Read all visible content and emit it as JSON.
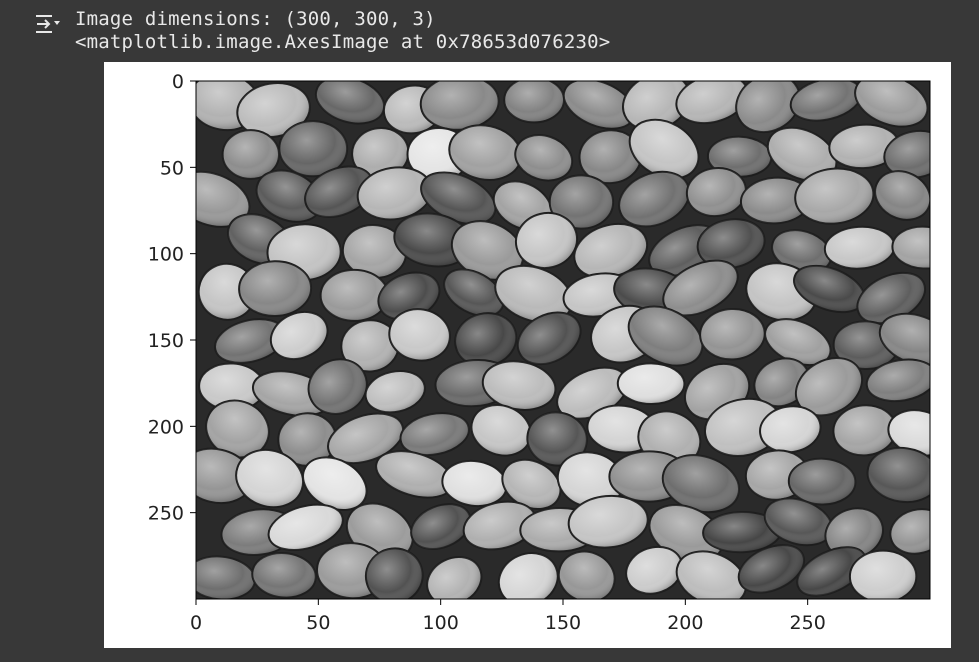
{
  "output": {
    "line1": "Image dimensions: (300, 300, 3)",
    "line2": "<matplotlib.image.AxesImage at 0x78653d076230>",
    "toggle_icon": "output-collapse-icon"
  },
  "colors": {
    "cell_background": "#383838",
    "text": "#e8e8e8",
    "plot_background": "#ffffff"
  },
  "chart_data": {
    "type": "heatmap",
    "image": "grayscale photo of round candies",
    "xlim": [
      0,
      300
    ],
    "ylim": [
      300,
      0
    ],
    "xticks": [
      0,
      50,
      100,
      150,
      200,
      250
    ],
    "yticks": [
      0,
      50,
      100,
      150,
      200,
      250
    ],
    "xtick_labels": [
      "0",
      "50",
      "100",
      "150",
      "200",
      "250"
    ],
    "ytick_labels": [
      "0",
      "50",
      "100",
      "150",
      "200",
      "250"
    ]
  }
}
